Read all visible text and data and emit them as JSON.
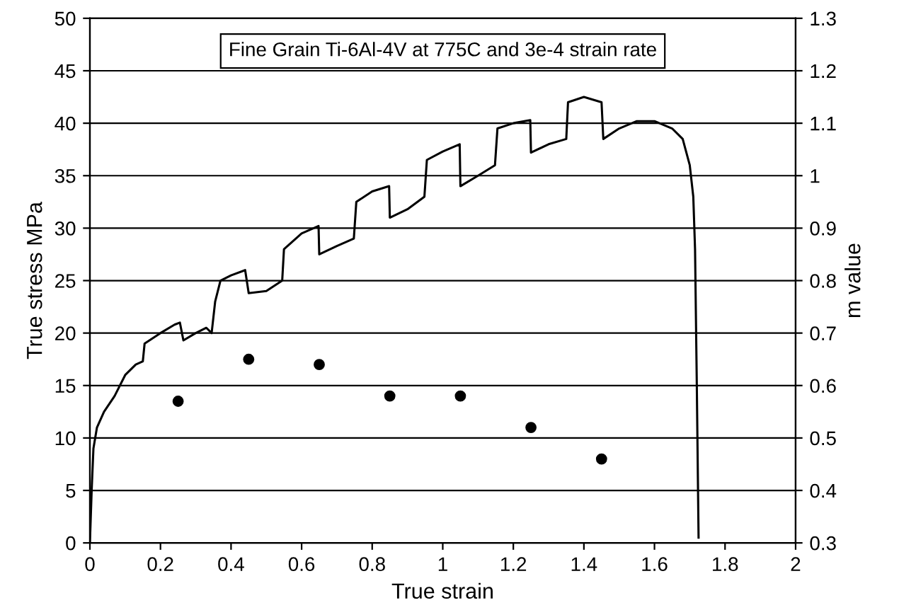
{
  "chart_data": {
    "type": "line",
    "xlabel": "True strain",
    "ylabel": "True stress MPa",
    "y2label": "m value",
    "annotations": [
      "Fine Grain Ti-6Al-4V at 775C and 3e-4 strain rate"
    ],
    "xlim": [
      0,
      2
    ],
    "xticks": [
      0,
      0.2,
      0.4,
      0.6,
      0.8,
      1,
      1.2,
      1.4,
      1.6,
      1.8,
      2
    ],
    "ylim": [
      0,
      50
    ],
    "yticks": [
      0,
      5,
      10,
      15,
      20,
      25,
      30,
      35,
      40,
      45,
      50
    ],
    "y2lim": [
      0.3,
      1.3
    ],
    "y2ticks": [
      0.3,
      0.4,
      0.5,
      0.6,
      0.7,
      0.8,
      0.9,
      1,
      1.1,
      1.2,
      1.3
    ],
    "grid": "y",
    "legend": false,
    "series": [
      {
        "color": "#000000",
        "marker": "none",
        "line_style": "solid",
        "x": [
          0,
          0.005,
          0.01,
          0.02,
          0.04,
          0.07,
          0.1,
          0.13,
          0.15,
          0.155,
          0.2,
          0.24,
          0.255,
          0.265,
          0.3,
          0.33,
          0.345,
          0.355,
          0.37,
          0.4,
          0.44,
          0.45,
          0.5,
          0.545,
          0.55,
          0.6,
          0.648,
          0.65,
          0.7,
          0.748,
          0.755,
          0.8,
          0.848,
          0.85,
          0.9,
          0.948,
          0.955,
          1.0,
          1.048,
          1.05,
          1.1,
          1.148,
          1.155,
          1.2,
          1.248,
          1.25,
          1.3,
          1.35,
          1.355,
          1.4,
          1.45,
          1.455,
          1.5,
          1.55,
          1.6,
          1.65,
          1.68,
          1.7,
          1.71,
          1.715,
          1.72,
          1.725
        ],
        "values": [
          0,
          5,
          9,
          11,
          12.5,
          14,
          16,
          17,
          17.3,
          19,
          20,
          20.8,
          21,
          19.3,
          20,
          20.5,
          20,
          23,
          25,
          25.5,
          26,
          23.8,
          24,
          25,
          28,
          29.5,
          30.2,
          27.5,
          28.3,
          29,
          32.5,
          33.5,
          34,
          31,
          31.8,
          33,
          36.5,
          37.3,
          38,
          34,
          35,
          36,
          39.5,
          40,
          40.3,
          37.2,
          38,
          38.5,
          42,
          42.5,
          42,
          38.5,
          39.5,
          40.2,
          40.2,
          39.5,
          38.5,
          36,
          33,
          28,
          15,
          0.5
        ]
      },
      {
        "type": "scatter",
        "axis": "y2",
        "color": "#000000",
        "marker": "circle",
        "x": [
          0.25,
          0.45,
          0.65,
          0.85,
          1.05,
          1.25,
          1.45
        ],
        "values": [
          0.57,
          0.65,
          0.64,
          0.58,
          0.58,
          0.52,
          0.46
        ]
      }
    ]
  }
}
